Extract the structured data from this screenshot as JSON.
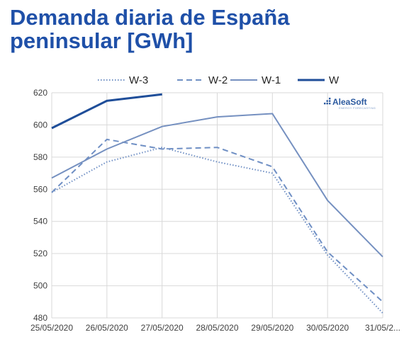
{
  "title": "Demanda diaria de España peninsular [GWh]",
  "logo": {
    "name": "AleaSoft",
    "tagline": "ENERGY FORECASTING"
  },
  "colors": {
    "W-3": "#6f8fc4",
    "W-2": "#6f8fc4",
    "W-1": "#7590c0",
    "W": "#1f4e99"
  },
  "chart_data": {
    "type": "line",
    "title": "Demanda diaria de España peninsular [GWh]",
    "xlabel": "",
    "ylabel": "",
    "categories": [
      "25/05/2020",
      "26/05/2020",
      "27/05/2020",
      "28/05/2020",
      "29/05/2020",
      "30/05/2020",
      "31/05/2..."
    ],
    "ylim": [
      480,
      620
    ],
    "yticks": [
      480,
      500,
      520,
      540,
      560,
      580,
      600,
      620
    ],
    "grid": true,
    "legend_position": "top",
    "series": [
      {
        "name": "W-3",
        "style": "dotted",
        "values": [
          558,
          577,
          586,
          577,
          570,
          519,
          483
        ]
      },
      {
        "name": "W-2",
        "style": "dashed",
        "values": [
          558,
          591,
          585,
          586,
          574,
          521,
          490
        ]
      },
      {
        "name": "W-1",
        "style": "solid",
        "values": [
          567,
          585,
          599,
          605,
          607,
          553,
          518
        ]
      },
      {
        "name": "W",
        "style": "solid-bold",
        "values": [
          598,
          615,
          619,
          null,
          null,
          null,
          null
        ]
      }
    ]
  }
}
